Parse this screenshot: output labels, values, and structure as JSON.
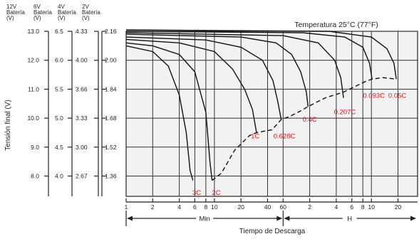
{
  "chart_data": {
    "type": "line",
    "title": "Temperatura 25°C (77°F)",
    "xlabel": "Tiempo de Descarga",
    "ylabel": "Tensión final (V)",
    "scale_headers": [
      [
        "12V",
        "Batería",
        "(V)"
      ],
      [
        "6V",
        "Batería",
        "(V)"
      ],
      [
        "4V",
        "Batería",
        "(V)"
      ],
      [
        "2V",
        "Batería",
        "(V)"
      ]
    ],
    "y_scales": [
      [
        "13.0",
        "12.0",
        "11.0",
        "10.0",
        "9.0",
        "8.0"
      ],
      [
        "6.5",
        "6.0",
        "5.5",
        "5.0",
        "4.5",
        "4.0"
      ],
      [
        "4.33",
        "4.00",
        "3.66",
        "3.33",
        "3.00",
        "2.67"
      ],
      [
        "2.16",
        "2.00",
        "1.84",
        "1.68",
        "1.52",
        "1.36"
      ]
    ],
    "y_tick_values": [
      13.0,
      12.0,
      11.0,
      10.0,
      9.0,
      8.0
    ],
    "ylim": [
      7.3,
      13.0
    ],
    "x_scale": "log",
    "x_tick_labels": [
      "1",
      "2",
      "4",
      "6",
      "8",
      "10",
      "20",
      "40",
      "60",
      "2",
      "4",
      "6",
      "8",
      "10",
      "20"
    ],
    "x_tick_minutes": [
      1,
      2,
      4,
      6,
      8,
      10,
      20,
      40,
      60,
      120,
      240,
      360,
      480,
      600,
      1200
    ],
    "xlim_minutes": [
      1,
      2000
    ],
    "x_units": [
      "Min",
      "H"
    ],
    "grid": true,
    "legend": "none",
    "series": [
      {
        "name": "3C",
        "label_min": 6.3,
        "label_v": 7.6,
        "points": [
          [
            1,
            12.5
          ],
          [
            2,
            12.3
          ],
          [
            3,
            11.8
          ],
          [
            4,
            10.8
          ],
          [
            4.8,
            9.5
          ],
          [
            5.3,
            8.2
          ],
          [
            5.7,
            7.85
          ]
        ]
      },
      {
        "name": "2C",
        "label_min": 10.5,
        "label_v": 7.6,
        "points": [
          [
            1,
            12.6
          ],
          [
            2,
            12.5
          ],
          [
            4,
            12.2
          ],
          [
            6,
            11.6
          ],
          [
            8,
            10.2
          ],
          [
            8.9,
            8.5
          ],
          [
            9.4,
            7.85
          ]
        ]
      },
      {
        "name": "1C",
        "label_min": 29,
        "label_v": 9.55,
        "points": [
          [
            1,
            12.72
          ],
          [
            4,
            12.6
          ],
          [
            10,
            12.3
          ],
          [
            16,
            11.7
          ],
          [
            22,
            11.0
          ],
          [
            27,
            10.3
          ],
          [
            30,
            9.5
          ]
        ]
      },
      {
        "name": "0.628C",
        "label_min": 62,
        "label_v": 9.55,
        "points": [
          [
            1,
            12.8
          ],
          [
            8,
            12.7
          ],
          [
            20,
            12.45
          ],
          [
            35,
            12.0
          ],
          [
            46,
            11.3
          ],
          [
            52,
            10.6
          ],
          [
            57,
            9.95
          ]
        ]
      },
      {
        "name": "0.4C",
        "label_min": 120,
        "label_v": 10.12,
        "points": [
          [
            1,
            12.9
          ],
          [
            20,
            12.8
          ],
          [
            50,
            12.6
          ],
          [
            75,
            12.2
          ],
          [
            95,
            11.6
          ],
          [
            110,
            10.9
          ],
          [
            115,
            10.4
          ]
        ]
      },
      {
        "name": "0.207C",
        "label_min": 300,
        "label_v": 10.38,
        "points": [
          [
            1,
            12.95
          ],
          [
            60,
            12.85
          ],
          [
            150,
            12.6
          ],
          [
            230,
            12.0
          ],
          [
            270,
            11.4
          ],
          [
            290,
            10.7
          ]
        ]
      },
      {
        "name": "0.093C",
        "label_min": 640,
        "label_v": 10.95,
        "points": [
          [
            1,
            13.0
          ],
          [
            100,
            12.95
          ],
          [
            300,
            12.8
          ],
          [
            480,
            12.45
          ],
          [
            570,
            11.9
          ],
          [
            610,
            11.35
          ]
        ]
      },
      {
        "name": "0.05C",
        "label_min": 1180,
        "label_v": 10.95,
        "points": [
          [
            1,
            13.05
          ],
          [
            200,
            13.0
          ],
          [
            600,
            12.8
          ],
          [
            900,
            12.4
          ],
          [
            1080,
            11.9
          ],
          [
            1150,
            11.35
          ]
        ]
      }
    ],
    "final_voltage_line": {
      "style": "dashed",
      "points": [
        [
          9.4,
          7.85
        ],
        [
          12,
          8.1
        ],
        [
          17,
          8.9
        ],
        [
          25,
          9.4
        ],
        [
          30,
          9.5
        ],
        [
          45,
          9.6
        ],
        [
          57,
          9.95
        ],
        [
          70,
          10.05
        ],
        [
          95,
          10.25
        ],
        [
          115,
          10.4
        ],
        [
          180,
          10.7
        ],
        [
          290,
          10.9
        ],
        [
          500,
          11.25
        ],
        [
          610,
          11.35
        ],
        [
          800,
          11.4
        ],
        [
          1150,
          11.35
        ]
      ]
    }
  }
}
